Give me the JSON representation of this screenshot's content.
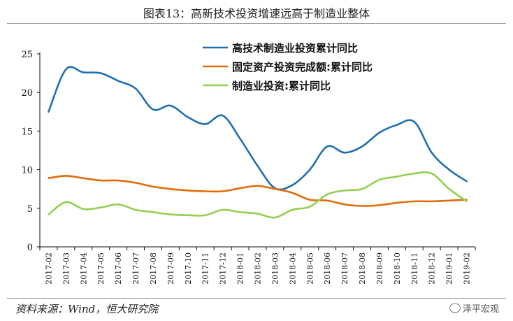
{
  "title": "图表13：高新技术投资增速远高于制造业整体",
  "source": "资料来源：Wind，恒大研究院",
  "watermark": "泽平宏观",
  "chart_data": {
    "type": "line",
    "title": "图表13：高新技术投资增速远高于制造业整体",
    "xlabel": "",
    "ylabel": "",
    "ylim": [
      0,
      25
    ],
    "yticks": [
      0,
      5,
      10,
      15,
      20,
      25
    ],
    "grid": false,
    "legend_position": "top-center",
    "categories": [
      "2017-02",
      "2017-03",
      "2017-04",
      "2017-05",
      "2017-06",
      "2017-07",
      "2017-08",
      "2017-09",
      "2017-10",
      "2017-11",
      "2017-12",
      "2018-01",
      "2018-02",
      "2018-03",
      "2018-04",
      "2018-05",
      "2018-06",
      "2018-07",
      "2018-08",
      "2018-09",
      "2018-10",
      "2018-11",
      "2018-12",
      "2019-01",
      "2019-02"
    ],
    "series": [
      {
        "name": "高技术制造业投资累计同比",
        "color": "#1f6fb4",
        "values": [
          17.5,
          23.0,
          22.6,
          22.5,
          21.5,
          20.5,
          17.8,
          18.3,
          16.8,
          15.9,
          17.0,
          14.0,
          10.5,
          7.6,
          8.0,
          10.0,
          13.0,
          12.2,
          13.0,
          14.8,
          15.8,
          16.2,
          12.2,
          10.0,
          8.5
        ]
      },
      {
        "name": "固定资产投资完成额:累计同比",
        "color": "#e36c0a",
        "values": [
          8.9,
          9.2,
          8.9,
          8.6,
          8.6,
          8.3,
          7.8,
          7.5,
          7.3,
          7.2,
          7.2,
          7.6,
          7.9,
          7.5,
          7.0,
          6.1,
          6.0,
          5.5,
          5.3,
          5.4,
          5.7,
          5.9,
          5.9,
          6.0,
          6.1
        ]
      },
      {
        "name": "制造业投资:累计同比",
        "color": "#92d050",
        "values": [
          4.2,
          5.8,
          4.9,
          5.1,
          5.5,
          4.8,
          4.5,
          4.2,
          4.1,
          4.1,
          4.8,
          4.5,
          4.3,
          3.8,
          4.8,
          5.2,
          6.8,
          7.3,
          7.5,
          8.7,
          9.1,
          9.5,
          9.5,
          7.5,
          5.9
        ]
      }
    ]
  }
}
